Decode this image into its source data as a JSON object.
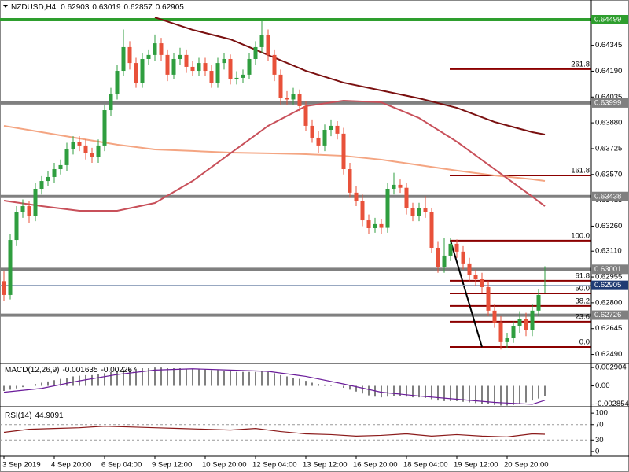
{
  "chart_data": {
    "type": "candlestick",
    "title": "NZDUSD,H4",
    "categories": [
      "3 Sep 2019",
      null,
      null,
      null,
      null,
      null,
      null,
      null,
      "4 Sep 20:00",
      null,
      null,
      null,
      null,
      null,
      null,
      null,
      "6 Sep 04:00",
      null,
      null,
      null,
      null,
      null,
      null,
      null,
      "9 Sep 12:00",
      null,
      null,
      null,
      null,
      null,
      null,
      null,
      "10 Sep 20:00",
      null,
      null,
      null,
      null,
      null,
      null,
      null,
      "12 Sep 04:00",
      null,
      null,
      null,
      null,
      null,
      null,
      null,
      "13 Sep 12:00",
      null,
      null,
      null,
      null,
      null,
      null,
      null,
      "16 Sep 20:00",
      null,
      null,
      null,
      null,
      null,
      null,
      null,
      "18 Sep 04:00",
      null,
      null,
      null,
      null,
      null,
      null,
      null,
      "19 Sep 12:00",
      null,
      null,
      null,
      null,
      null,
      null,
      null,
      "20 Sep 20:00",
      null,
      null,
      null,
      null,
      null,
      null
    ],
    "open": [
      0.6293,
      0.62847,
      0.63177,
      0.63343,
      0.6338,
      0.63319,
      0.63484,
      0.63531,
      0.63555,
      0.63602,
      0.63626,
      0.6372,
      0.63767,
      0.63744,
      0.63697,
      0.63673,
      0.63744,
      0.63956,
      0.64051,
      0.64192,
      0.64334,
      0.64239,
      0.64121,
      0.64263,
      0.64287,
      0.64357,
      0.64287,
      0.64169,
      0.64263,
      0.64287,
      0.64216,
      0.64192,
      0.64239,
      0.64192,
      0.64121,
      0.64239,
      0.64263,
      0.64145,
      0.6415,
      0.64169,
      0.64263,
      0.64334,
      0.64405,
      0.64287,
      0.64169,
      0.64027,
      0.6402,
      0.64051,
      0.6398,
      0.63862,
      0.63791,
      0.63744,
      0.63838,
      0.63862,
      0.63815,
      0.63602,
      0.63461,
      0.63413,
      0.63295,
      0.63248,
      0.63272,
      0.6325,
      0.63484,
      0.63508,
      0.6349,
      0.63366,
      0.63319,
      0.63366,
      0.63343,
      0.6313,
      0.63012,
      0.63083,
      0.63154,
      0.63107,
      0.63036,
      0.62965,
      0.62941,
      0.62894,
      0.62753,
      0.62682,
      0.62564,
      0.62587,
      0.62658,
      0.62705,
      0.62635,
      0.62753,
      0.62903
    ],
    "high": [
      0.6299,
      0.6321,
      0.6338,
      0.6342,
      0.6341,
      0.6352,
      0.6356,
      0.6359,
      0.6364,
      0.6366,
      0.6376,
      0.638,
      0.638,
      0.6378,
      0.6373,
      0.6378,
      0.6399,
      0.6409,
      0.6423,
      0.6444,
      0.6437,
      0.6427,
      0.643,
      0.6432,
      0.6441,
      0.6439,
      0.6432,
      0.643,
      0.6433,
      0.6432,
      0.6425,
      0.6427,
      0.6427,
      0.6423,
      0.6427,
      0.643,
      0.6429,
      0.6419,
      0.642,
      0.643,
      0.6437,
      0.64499,
      0.6444,
      0.6432,
      0.642,
      0.6407,
      0.6409,
      0.6408,
      0.6401,
      0.639,
      0.6383,
      0.6387,
      0.639,
      0.6389,
      0.6385,
      0.6364,
      0.635,
      0.6345,
      0.6333,
      0.6331,
      0.633,
      0.6352,
      0.6358,
      0.6354,
      0.6352,
      0.634,
      0.634,
      0.6344,
      0.6337,
      0.6317,
      0.6319,
      0.6319,
      0.6318,
      0.6314,
      0.6307,
      0.63,
      0.6298,
      0.6293,
      0.6279,
      0.6272,
      0.6262,
      0.6269,
      0.6275,
      0.6274,
      0.6279,
      0.6288,
      0.63019
    ],
    "low": [
      0.6281,
      0.6282,
      0.6314,
      0.6331,
      0.6328,
      0.6329,
      0.6345,
      0.635,
      0.6352,
      0.6357,
      0.6359,
      0.6369,
      0.6371,
      0.6366,
      0.6364,
      0.6364,
      0.6371,
      0.6392,
      0.6402,
      0.6416,
      0.642,
      0.6409,
      0.6409,
      0.6423,
      0.6425,
      0.6425,
      0.6413,
      0.6414,
      0.6423,
      0.6418,
      0.6416,
      0.6416,
      0.6416,
      0.6409,
      0.6409,
      0.642,
      0.6411,
      0.6411,
      0.6412,
      0.6414,
      0.6423,
      0.643,
      0.6425,
      0.6413,
      0.6399,
      0.6399,
      0.6399,
      0.6395,
      0.6383,
      0.6376,
      0.637,
      0.6371,
      0.638,
      0.6378,
      0.6357,
      0.6343,
      0.6338,
      0.6326,
      0.6321,
      0.6322,
      0.6321,
      0.6322,
      0.6345,
      0.6346,
      0.6333,
      0.6329,
      0.6329,
      0.6331,
      0.631,
      0.6298,
      0.6298,
      0.6305,
      0.6307,
      0.63,
      0.6293,
      0.629,
      0.6286,
      0.6272,
      0.6265,
      0.6252,
      0.6253,
      0.6256,
      0.6262,
      0.626,
      0.626,
      0.6272,
      0.62857
    ],
    "close": [
      0.62847,
      0.63177,
      0.63343,
      0.6338,
      0.63319,
      0.63484,
      0.63531,
      0.63555,
      0.63602,
      0.63626,
      0.6372,
      0.63767,
      0.63744,
      0.63697,
      0.63673,
      0.63744,
      0.63956,
      0.64051,
      0.64192,
      0.64334,
      0.64239,
      0.64121,
      0.64263,
      0.64287,
      0.64357,
      0.64287,
      0.64169,
      0.64263,
      0.64287,
      0.64216,
      0.64192,
      0.64239,
      0.64192,
      0.64121,
      0.64239,
      0.64263,
      0.64145,
      0.6415,
      0.64169,
      0.64263,
      0.64334,
      0.64405,
      0.64287,
      0.64169,
      0.64027,
      0.6402,
      0.64051,
      0.6398,
      0.63862,
      0.63791,
      0.63744,
      0.63838,
      0.63862,
      0.63815,
      0.63602,
      0.63461,
      0.63413,
      0.63295,
      0.63248,
      0.63272,
      0.6325,
      0.63484,
      0.63508,
      0.6349,
      0.63366,
      0.63319,
      0.63366,
      0.63343,
      0.6313,
      0.63012,
      0.63083,
      0.63154,
      0.63107,
      0.63036,
      0.62965,
      0.62941,
      0.62894,
      0.62753,
      0.62682,
      0.62564,
      0.62587,
      0.62658,
      0.62705,
      0.62635,
      0.62753,
      0.62847,
      0.62905
    ],
    "up_color": "#2f9e3f",
    "down_color": "#e8513a",
    "ylim": [
      0.62436,
      0.64617
    ],
    "yticks": [
      0.64345,
      {
        "value": 0.6419,
        "label": "0.64190"
      },
      0.64035,
      {
        "value": 0.6388,
        "label": "0.63880"
      },
      0.63725,
      {
        "value": 0.6357,
        "label": "0.63570"
      },
      0.63415,
      {
        "value": 0.6326,
        "label": "0.63260"
      },
      {
        "value": 0.6311,
        "label": "0.63110"
      },
      0.62955,
      {
        "value": 0.628,
        "label": "0.62800"
      },
      0.62645,
      {
        "value": 0.6249,
        "label": "0.62490"
      }
    ],
    "moving_averages": [
      {
        "color": "#7a1010",
        "x": [
          24,
          30,
          36,
          42,
          48,
          54,
          60,
          66,
          72,
          78,
          84,
          86
        ],
        "values": [
          0.64513,
          0.64438,
          0.64381,
          0.64287,
          0.64192,
          0.64121,
          0.64074,
          0.64027,
          0.6397,
          0.63885,
          0.63824,
          0.6381
        ]
      },
      {
        "color": "#f4a582",
        "x": [
          0,
          6,
          12,
          18,
          24,
          30,
          36,
          42,
          48,
          54,
          60,
          66,
          72,
          78,
          84,
          86
        ],
        "values": [
          0.63862,
          0.63824,
          0.63786,
          0.63749,
          0.6372,
          0.63711,
          0.63701,
          0.63697,
          0.63692,
          0.63682,
          0.63659,
          0.63626,
          0.63593,
          0.63564,
          0.63541,
          0.63531
        ]
      },
      {
        "color": "#c8505a",
        "x": [
          0,
          6,
          12,
          18,
          24,
          30,
          36,
          42,
          48,
          54,
          60,
          66,
          72,
          78,
          84,
          86
        ],
        "values": [
          0.63413,
          0.6338,
          0.63352,
          0.63352,
          0.63399,
          0.63531,
          0.63697,
          0.63862,
          0.6398,
          0.64013,
          0.64003,
          0.63909,
          0.63767,
          0.63602,
          0.63437,
          0.6338
        ]
      }
    ],
    "levels": [
      {
        "value": 0.64499,
        "color": "#2e9e2e"
      },
      {
        "value": 0.63999,
        "color": "#808080"
      },
      {
        "value": 0.63438,
        "color": "#808080"
      },
      {
        "value": 0.63001,
        "color": "#808080"
      },
      {
        "value": 0.62726,
        "color": "#808080"
      }
    ],
    "current_color": "#1f3b73",
    "fibonacci": {
      "color": "#8b0000",
      "start": 71,
      "levels": [
        {
          "label": "261.8",
          "value": 0.64202
        },
        {
          "label": "161.8",
          "value": 0.63564
        },
        {
          "label": "100.0",
          "value": 0.63173
        },
        {
          "label": "61.8",
          "value": 0.62932
        },
        {
          "label": "50.0",
          "value": 0.62856
        },
        {
          "label": "38.2",
          "value": 0.62781
        },
        {
          "label": "23.6",
          "value": 0.62687
        },
        {
          "label": "0.0",
          "value": 0.62535
        }
      ],
      "trend_line": {
        "x": [
          71,
          76
        ],
        "values": [
          0.63173,
          0.62535
        ]
      }
    },
    "macd": {
      "name": "MACD(12,26,9)",
      "color": "#000000",
      "signal_color": "#6a1b9a",
      "histogram": [
        -0.0008,
        -0.0006,
        -0.0004,
        -0.0002,
        0.0,
        0.0003,
        0.0005,
        0.0007,
        0.0009,
        0.0011,
        0.0013,
        0.0015,
        0.0016,
        0.0017,
        0.0017,
        0.0018,
        0.002,
        0.0022,
        0.0024,
        0.0026,
        0.0027,
        0.0027,
        0.0028,
        0.0028,
        0.0029,
        0.0029,
        0.0028,
        0.0028,
        0.0028,
        0.0027,
        0.0027,
        0.0026,
        0.0026,
        0.0025,
        0.0025,
        0.0024,
        0.0023,
        0.0022,
        0.0022,
        0.0022,
        0.0022,
        0.0023,
        0.0022,
        0.002,
        0.0017,
        0.0015,
        0.0013,
        0.0011,
        0.0008,
        0.0005,
        0.0003,
        0.0002,
        0.0001,
        0.0,
        -0.0003,
        -0.0006,
        -0.0009,
        -0.0012,
        -0.0015,
        -0.0017,
        -0.0018,
        -0.0017,
        -0.0016,
        -0.0016,
        -0.0017,
        -0.0018,
        -0.0018,
        -0.0019,
        -0.0021,
        -0.0023,
        -0.0024,
        -0.0024,
        -0.0024,
        -0.0025,
        -0.0026,
        -0.0027,
        -0.0028,
        -0.0029,
        -0.003,
        -0.0031,
        -0.0031,
        -0.003,
        -0.0028,
        -0.0026,
        -0.0023,
        -0.002,
        -0.001635
      ],
      "signal_x": [
        0,
        6,
        12,
        18,
        24,
        30,
        36,
        42,
        48,
        54,
        60,
        66,
        72,
        78,
        84,
        86
      ],
      "signal": [
        -0.001,
        -0.0004,
        0.0008,
        0.0018,
        0.0025,
        0.0027,
        0.0025,
        0.0023,
        0.0015,
        0.0003,
        -0.001,
        -0.0016,
        -0.0021,
        -0.0026,
        -0.0029,
        -0.002267
      ],
      "ylim": [
        -0.00328,
        0.00354
      ],
      "yticks": [
        0.002904,
        {
          "value": 0,
          "label": "0.00"
        },
        -0.002854
      ]
    },
    "rsi": {
      "name": "RSI(14)",
      "color": "#8b1a1a",
      "x": [
        0,
        4,
        8,
        12,
        16,
        20,
        24,
        28,
        32,
        36,
        40,
        44,
        48,
        52,
        56,
        60,
        64,
        68,
        72,
        76,
        80,
        84,
        86
      ],
      "values": [
        50,
        58,
        60,
        62,
        66,
        64,
        62,
        60,
        58,
        56,
        60,
        52,
        46,
        44,
        40,
        42,
        46,
        40,
        44,
        40,
        38,
        46,
        44.9091
      ],
      "ylim": [
        -12.5,
        116.7
      ],
      "yticks": [
        100,
        70,
        30,
        0
      ],
      "dashed_levels": [
        70,
        30
      ]
    }
  }
}
